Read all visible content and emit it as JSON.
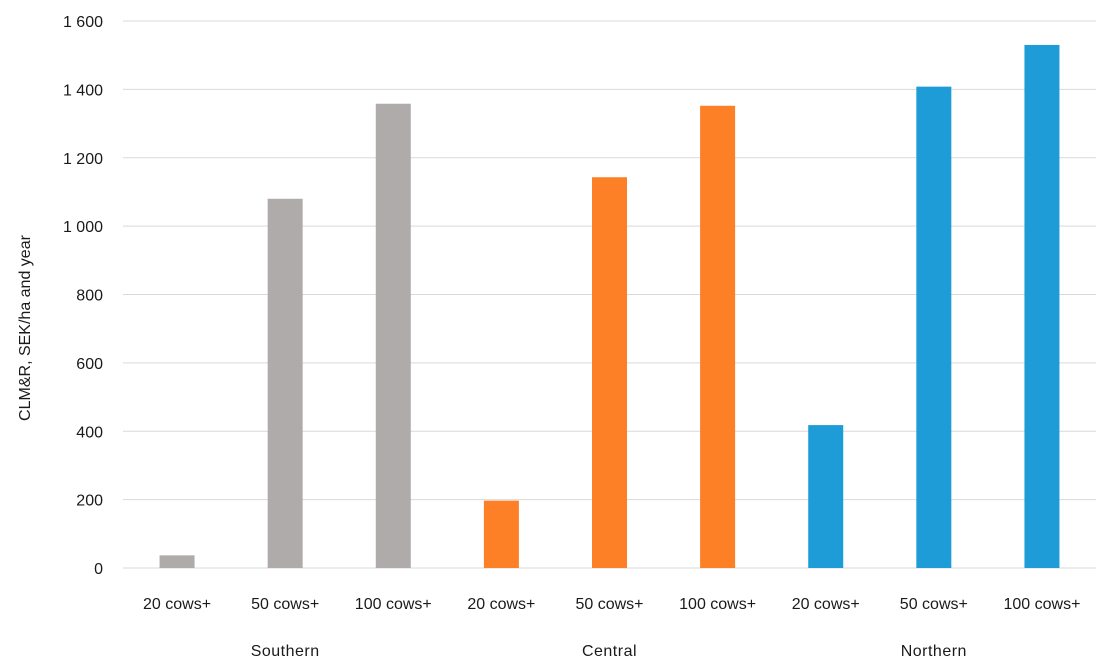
{
  "chart_data": {
    "type": "bar",
    "ylabel": "CLM&R, SEK/ha and year",
    "ylim": [
      0,
      1600
    ],
    "yticks": [
      0,
      200,
      400,
      600,
      800,
      1000,
      1200,
      1400,
      1600
    ],
    "ytick_labels": [
      "0",
      "200",
      "400",
      "600",
      "800",
      "1 000",
      "1 200",
      "1 400",
      "1 600"
    ],
    "grid": true,
    "legend": "none",
    "groups": [
      {
        "name": "Southern",
        "color": "#afabab",
        "categories": [
          "20 cows+",
          "50 cows+",
          "100 cows+"
        ],
        "values": [
          37,
          1080,
          1358
        ]
      },
      {
        "name": "Central",
        "color": "#fd7f26",
        "categories": [
          "20 cows+",
          "50 cows+",
          "100 cows+"
        ],
        "values": [
          197,
          1143,
          1352
        ]
      },
      {
        "name": "Northern",
        "color": "#1e9cd7",
        "categories": [
          "20 cows+",
          "50 cows+",
          "100 cows+"
        ],
        "values": [
          418,
          1408,
          1530
        ]
      }
    ]
  }
}
